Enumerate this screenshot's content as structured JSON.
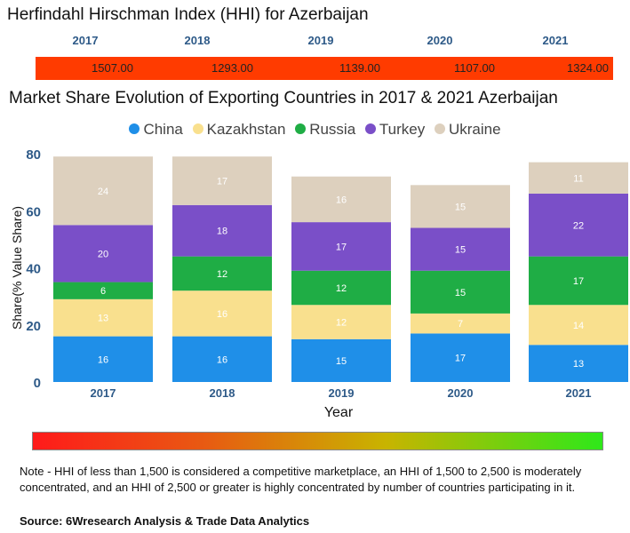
{
  "hhi": {
    "title": "Herfindahl Hirschman Index (HHI) for Azerbaijan",
    "years": [
      "2017",
      "2018",
      "2019",
      "2020",
      "2021"
    ],
    "values": [
      "1507.00",
      "1293.00",
      "1139.00",
      "1107.00",
      "1324.00"
    ],
    "bar_color": "#ff3b00"
  },
  "chart_data": {
    "type": "bar",
    "stacked": true,
    "title": "Market Share Evolution of Exporting Countries in 2017 & 2021 Azerbaijan",
    "xlabel": "Year",
    "ylabel": "Share(% Value Share)",
    "ylim": [
      0,
      80
    ],
    "yticks": [
      0,
      20,
      40,
      60,
      80
    ],
    "categories": [
      "2017",
      "2018",
      "2019",
      "2020",
      "2021"
    ],
    "series": [
      {
        "name": "China",
        "color": "#1f8fe8",
        "values": [
          16,
          16,
          15,
          17,
          13
        ]
      },
      {
        "name": "Kazakhstan",
        "color": "#f9e08e",
        "values": [
          13,
          16,
          12,
          7,
          14
        ]
      },
      {
        "name": "Russia",
        "color": "#1fad45",
        "values": [
          6,
          12,
          12,
          15,
          17
        ]
      },
      {
        "name": "Turkey",
        "color": "#7a4fc8",
        "values": [
          20,
          18,
          17,
          15,
          22
        ]
      },
      {
        "name": "Ukraine",
        "color": "#ddd0be",
        "values": [
          24,
          17,
          16,
          15,
          11
        ]
      }
    ],
    "legend_position": "top-center"
  },
  "note": "Note - HHI of less than 1,500 is considered a competitive marketplace, an HHI of 1,500 to 2,500 is moderately concentrated, and an HHI of 2,500 or greater is highly concentrated by number of countries participating in it.",
  "source": "Source: 6Wresearch Analysis & Trade Data Analytics"
}
